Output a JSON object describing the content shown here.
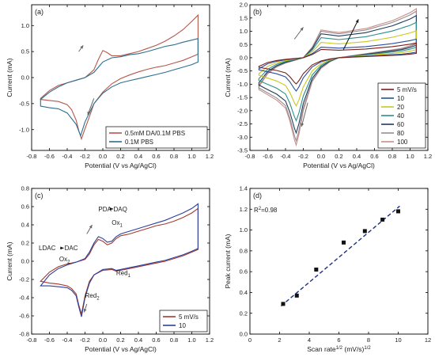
{
  "figure": {
    "panels": [
      "(a)",
      "(b)",
      "(c)",
      "(d)"
    ]
  },
  "chart_data": [
    {
      "id": "a",
      "type": "line",
      "label": "(a)",
      "xlabel": "Potential (V vs Ag/AgCl)",
      "ylabel": "Current (mA)",
      "xlim": [
        -0.8,
        1.2
      ],
      "ylim": [
        -1.4,
        1.4
      ],
      "xticks": [
        -0.8,
        -0.6,
        -0.4,
        -0.2,
        0.0,
        0.2,
        0.4,
        0.6,
        0.8,
        1.0,
        1.2
      ],
      "yticks": [
        -1.0,
        -0.5,
        0.0,
        0.5,
        1.0
      ],
      "xtick_labels": [
        "-0.8",
        "-0.6",
        "-0.4",
        "-0.2",
        "0.0",
        "0.2",
        "0.4",
        "0.6",
        "0.8",
        "1.0",
        "1.2"
      ],
      "ytick_labels": [
        "-1.0",
        "-0.5",
        "0.0",
        "0.5",
        "1.0"
      ],
      "legend_position": "bottom-right",
      "grid": false,
      "series": [
        {
          "name": "0.5mM DA/0.1M PBS",
          "color": "#b5574b",
          "x": [
            -0.7,
            -0.6,
            -0.5,
            -0.4,
            -0.3,
            -0.2,
            -0.1,
            -0.05,
            0.0,
            0.05,
            0.1,
            0.2,
            0.3,
            0.4,
            0.5,
            0.6,
            0.7,
            0.8,
            0.9,
            1.0,
            1.07,
            1.07,
            1.0,
            0.9,
            0.8,
            0.7,
            0.6,
            0.5,
            0.4,
            0.3,
            0.2,
            0.1,
            0.0,
            -0.1,
            -0.15,
            -0.2,
            -0.24,
            -0.27,
            -0.3,
            -0.35,
            -0.4,
            -0.5,
            -0.6,
            -0.7
          ],
          "y": [
            -0.4,
            -0.25,
            -0.15,
            -0.1,
            -0.05,
            0.0,
            0.15,
            0.35,
            0.52,
            0.48,
            0.42,
            0.42,
            0.46,
            0.5,
            0.56,
            0.62,
            0.7,
            0.8,
            0.92,
            1.08,
            1.2,
            0.45,
            0.4,
            0.33,
            0.28,
            0.23,
            0.2,
            0.16,
            0.11,
            0.05,
            -0.02,
            -0.12,
            -0.28,
            -0.5,
            -0.75,
            -0.98,
            -1.18,
            -1.02,
            -0.82,
            -0.62,
            -0.52,
            -0.46,
            -0.44,
            -0.42
          ]
        },
        {
          "name": "0.1M PBS",
          "color": "#2d6e8e",
          "x": [
            -0.7,
            -0.6,
            -0.5,
            -0.4,
            -0.3,
            -0.2,
            -0.1,
            0.0,
            0.1,
            0.2,
            0.3,
            0.4,
            0.5,
            0.6,
            0.7,
            0.8,
            0.9,
            1.0,
            1.07,
            1.07,
            1.0,
            0.9,
            0.8,
            0.7,
            0.6,
            0.5,
            0.4,
            0.3,
            0.2,
            0.1,
            0.0,
            -0.1,
            -0.2,
            -0.25,
            -0.3,
            -0.4,
            -0.5,
            -0.6,
            -0.7
          ],
          "y": [
            -0.42,
            -0.28,
            -0.18,
            -0.1,
            -0.05,
            0.0,
            0.1,
            0.3,
            0.38,
            0.4,
            0.44,
            0.46,
            0.5,
            0.55,
            0.6,
            0.63,
            0.68,
            0.72,
            0.75,
            0.3,
            0.25,
            0.2,
            0.15,
            0.1,
            0.06,
            0.02,
            -0.02,
            -0.06,
            -0.1,
            -0.18,
            -0.3,
            -0.5,
            -0.85,
            -1.12,
            -0.9,
            -0.68,
            -0.6,
            -0.58,
            -0.55
          ]
        }
      ]
    },
    {
      "id": "b",
      "type": "line",
      "label": "(b)",
      "xlabel": "Potential (V vs Ag/AgCl)",
      "ylabel": "Current (mA)",
      "xlim": [
        -0.8,
        1.2
      ],
      "ylim": [
        -3.5,
        2.0
      ],
      "xticks": [
        -0.8,
        -0.6,
        -0.4,
        -0.2,
        0.0,
        0.2,
        0.4,
        0.6,
        0.8,
        1.0,
        1.2
      ],
      "yticks": [
        -3.5,
        -3.0,
        -2.5,
        -2.0,
        -1.5,
        -1.0,
        -0.5,
        0.0,
        0.5,
        1.0,
        1.5,
        2.0
      ],
      "xtick_labels": [
        "-0.8",
        "-0.6",
        "-0.4",
        "-0.2",
        "0.0",
        "0.2",
        "0.4",
        "0.6",
        "0.8",
        "1.0",
        "1.2"
      ],
      "ytick_labels": [
        "-3.5",
        "-3.0",
        "-2.5",
        "-2.0",
        "-1.5",
        "-1.0",
        "-0.5",
        "0.0",
        "0.5",
        "1.0",
        "1.5",
        "2.0"
      ],
      "legend_position": "bottom-right",
      "grid": false,
      "scan_rates": [
        {
          "name": "5  mV/s",
          "color": "#7a1f1f",
          "scale": 0.3
        },
        {
          "name": "10",
          "color": "#2a4f9a",
          "scale": 0.38
        },
        {
          "name": "20",
          "color": "#c8c81c",
          "scale": 0.55
        },
        {
          "name": "40",
          "color": "#2b8f8a",
          "scale": 0.72
        },
        {
          "name": "60",
          "color": "#1f3c5a",
          "scale": 0.86
        },
        {
          "name": "80",
          "color": "#9a8a90",
          "scale": 0.95
        },
        {
          "name": "100",
          "color": "#c49088",
          "scale": 1.0
        }
      ],
      "template_x": [
        -0.7,
        -0.6,
        -0.5,
        -0.4,
        -0.3,
        -0.2,
        -0.1,
        0.0,
        0.1,
        0.2,
        0.3,
        0.4,
        0.5,
        0.6,
        0.7,
        0.8,
        0.9,
        1.0,
        1.07,
        1.07,
        1.0,
        0.9,
        0.8,
        0.7,
        0.6,
        0.5,
        0.4,
        0.3,
        0.2,
        0.1,
        0.0,
        -0.1,
        -0.2,
        -0.25,
        -0.28,
        -0.3,
        -0.35,
        -0.4,
        -0.5,
        -0.6,
        -0.7
      ],
      "template_y": [
        -1.1,
        -0.6,
        -0.35,
        -0.2,
        -0.1,
        0.0,
        0.4,
        1.05,
        1.0,
        0.95,
        1.0,
        1.05,
        1.1,
        1.2,
        1.3,
        1.4,
        1.55,
        1.7,
        1.85,
        0.55,
        0.45,
        0.35,
        0.3,
        0.25,
        0.2,
        0.15,
        0.1,
        0.05,
        0.0,
        -0.15,
        -0.4,
        -0.9,
        -2.0,
        -2.9,
        -3.3,
        -3.1,
        -2.4,
        -1.9,
        -1.6,
        -1.4,
        -1.2
      ]
    },
    {
      "id": "c",
      "type": "line",
      "label": "(c)",
      "xlabel": "Potential (V vs Ag/AgCl)",
      "ylabel": "Current (mA)",
      "xlim": [
        -0.8,
        1.2
      ],
      "ylim": [
        -0.8,
        0.8
      ],
      "xticks": [
        -0.8,
        -0.6,
        -0.4,
        -0.2,
        0.0,
        0.2,
        0.4,
        0.6,
        0.8,
        1.0,
        1.2
      ],
      "yticks": [
        -0.8,
        -0.6,
        -0.4,
        -0.2,
        0.0,
        0.2,
        0.4,
        0.6,
        0.8
      ],
      "xtick_labels": [
        "-0.8",
        "-0.6",
        "-0.4",
        "-0.2",
        "0.0",
        "0.2",
        "0.4",
        "0.6",
        "0.8",
        "1.0",
        "1.2"
      ],
      "ytick_labels": [
        "-0.8",
        "-0.6",
        "-0.4",
        "-0.2",
        "0.0",
        "0.2",
        "0.4",
        "0.6",
        "0.8"
      ],
      "legend_position": "bottom-right",
      "grid": false,
      "annotations": [
        {
          "text": "PDA",
          "x": -0.05,
          "y": 0.55
        },
        {
          "text": "DAQ",
          "x": 0.12,
          "y": 0.55
        },
        {
          "text": "Ox",
          "sub": "1",
          "x": 0.1,
          "y": 0.4
        },
        {
          "text": "LDAC",
          "x": -0.72,
          "y": 0.12
        },
        {
          "text": "DAC",
          "x": -0.43,
          "y": 0.12
        },
        {
          "text": "Ox",
          "sub": "2",
          "x": -0.49,
          "y": 0.0
        },
        {
          "text": "Red",
          "sub": "1",
          "x": 0.15,
          "y": -0.15
        },
        {
          "text": "Red",
          "sub": "2",
          "x": -0.2,
          "y": -0.4
        }
      ],
      "series": [
        {
          "name": "5  mV/s",
          "color": "#a23a2e",
          "x": [
            -0.7,
            -0.6,
            -0.5,
            -0.4,
            -0.3,
            -0.2,
            -0.15,
            -0.1,
            -0.05,
            0.0,
            0.05,
            0.1,
            0.15,
            0.2,
            0.3,
            0.4,
            0.5,
            0.6,
            0.7,
            0.8,
            0.9,
            1.0,
            1.07,
            1.07,
            1.0,
            0.9,
            0.8,
            0.7,
            0.6,
            0.5,
            0.4,
            0.3,
            0.2,
            0.15,
            0.1,
            0.0,
            -0.1,
            -0.15,
            -0.2,
            -0.24,
            -0.27,
            -0.3,
            -0.35,
            -0.4,
            -0.5,
            -0.6,
            -0.7
          ],
          "y": [
            -0.22,
            -0.12,
            -0.06,
            -0.03,
            -0.01,
            0.02,
            0.08,
            0.18,
            0.24,
            0.22,
            0.18,
            0.2,
            0.25,
            0.28,
            0.3,
            0.33,
            0.36,
            0.39,
            0.41,
            0.44,
            0.48,
            0.53,
            0.58,
            0.13,
            0.1,
            0.06,
            0.03,
            0.0,
            -0.02,
            -0.04,
            -0.06,
            -0.08,
            -0.1,
            -0.11,
            -0.09,
            -0.1,
            -0.15,
            -0.22,
            -0.38,
            -0.58,
            -0.48,
            -0.36,
            -0.3,
            -0.27,
            -0.25,
            -0.24,
            -0.22
          ]
        },
        {
          "name": "10",
          "color": "#2e3f9c",
          "x": [
            -0.7,
            -0.6,
            -0.5,
            -0.4,
            -0.3,
            -0.2,
            -0.15,
            -0.1,
            -0.05,
            0.0,
            0.05,
            0.1,
            0.15,
            0.2,
            0.3,
            0.4,
            0.5,
            0.6,
            0.7,
            0.8,
            0.9,
            1.0,
            1.07,
            1.07,
            1.0,
            0.9,
            0.8,
            0.7,
            0.6,
            0.5,
            0.4,
            0.3,
            0.2,
            0.15,
            0.1,
            0.0,
            -0.1,
            -0.15,
            -0.2,
            -0.24,
            -0.27,
            -0.3,
            -0.35,
            -0.4,
            -0.5,
            -0.6,
            -0.7
          ],
          "y": [
            -0.27,
            -0.15,
            -0.08,
            -0.04,
            -0.01,
            0.03,
            0.1,
            0.2,
            0.27,
            0.25,
            0.21,
            0.22,
            0.27,
            0.3,
            0.33,
            0.36,
            0.39,
            0.42,
            0.45,
            0.49,
            0.53,
            0.58,
            0.63,
            0.14,
            0.11,
            0.07,
            0.04,
            0.01,
            -0.01,
            -0.03,
            -0.05,
            -0.07,
            -0.09,
            -0.1,
            -0.08,
            -0.09,
            -0.15,
            -0.24,
            -0.4,
            -0.61,
            -0.5,
            -0.38,
            -0.32,
            -0.29,
            -0.28,
            -0.27,
            -0.27
          ]
        }
      ]
    },
    {
      "id": "d",
      "type": "scatter",
      "label": "(d)",
      "xlabel": "Scan rate",
      "xlabel_sup": "1/2",
      "xlabel_units": " (mV/s)",
      "xlabel_units_sup": "1/2",
      "ylabel": "Peak current (mA)",
      "xlim": [
        0,
        12
      ],
      "ylim": [
        0.0,
        1.4
      ],
      "xticks": [
        0,
        2,
        4,
        6,
        8,
        10,
        12
      ],
      "yticks": [
        0.0,
        0.2,
        0.4,
        0.6,
        0.8,
        1.0,
        1.2,
        1.4
      ],
      "xtick_labels": [
        "0",
        "2",
        "4",
        "6",
        "8",
        "10",
        "12"
      ],
      "ytick_labels": [
        "0.0",
        "0.2",
        "0.4",
        "0.6",
        "0.8",
        "1.0",
        "1.2",
        "1.4"
      ],
      "grid": false,
      "annotation": "R",
      "annotation_sup": "2",
      "annotation_value": "=0.98",
      "points_x": [
        2.24,
        3.16,
        4.47,
        6.32,
        7.75,
        8.94,
        10.0
      ],
      "points_y": [
        0.29,
        0.37,
        0.62,
        0.88,
        0.99,
        1.1,
        1.18
      ],
      "fit_x": [
        2.1,
        10.1
      ],
      "fit_y": [
        0.27,
        1.23
      ],
      "marker_color": "#111111",
      "fit_color": "#1f2f7a"
    }
  ]
}
